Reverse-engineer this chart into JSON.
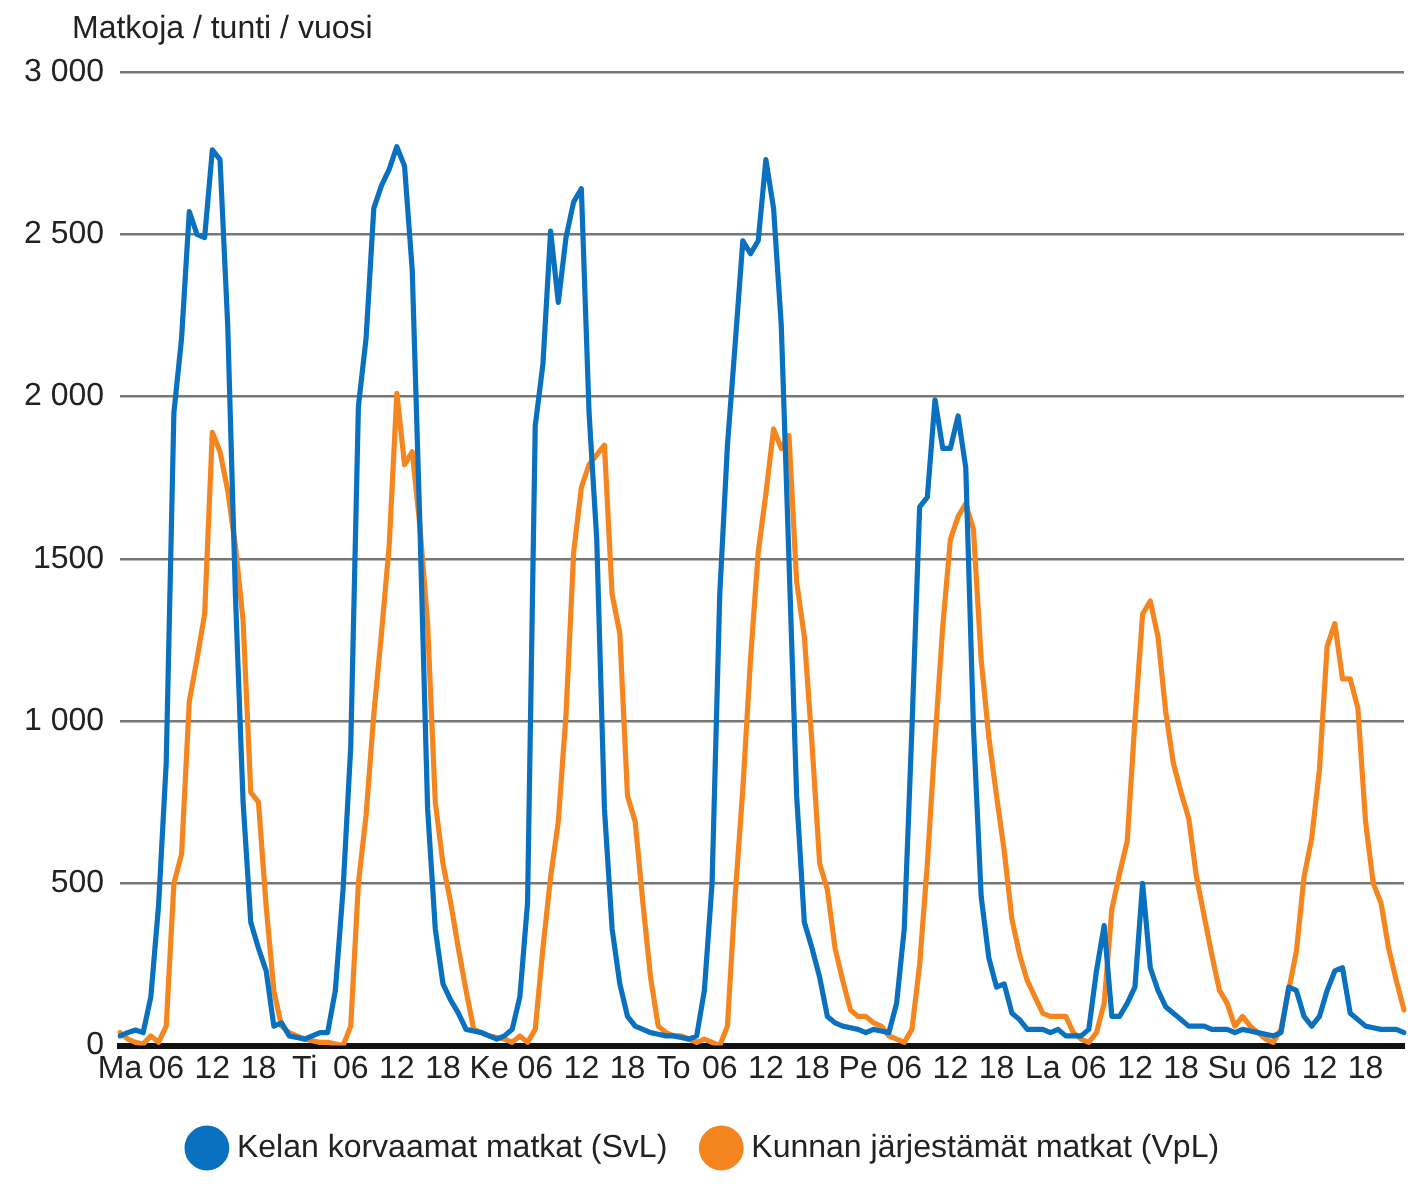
{
  "chart_data": {
    "type": "line",
    "ylabel": "Matkoja / tunti  / vuosi",
    "categories": [
      "Ma",
      null,
      null,
      null,
      null,
      null,
      "06",
      null,
      null,
      null,
      null,
      null,
      "12",
      null,
      null,
      null,
      null,
      null,
      "18",
      null,
      null,
      null,
      null,
      null,
      "Ti",
      null,
      null,
      null,
      null,
      null,
      "06",
      null,
      null,
      null,
      null,
      null,
      "12",
      null,
      null,
      null,
      null,
      null,
      "18",
      null,
      null,
      null,
      null,
      null,
      "Ke",
      null,
      null,
      null,
      null,
      null,
      "06",
      null,
      null,
      null,
      null,
      null,
      "12",
      null,
      null,
      null,
      null,
      null,
      "18",
      null,
      null,
      null,
      null,
      null,
      "To",
      null,
      null,
      null,
      null,
      null,
      "06",
      null,
      null,
      null,
      null,
      null,
      "12",
      null,
      null,
      null,
      null,
      null,
      "18",
      null,
      null,
      null,
      null,
      null,
      "Pe",
      null,
      null,
      null,
      null,
      null,
      "06",
      null,
      null,
      null,
      null,
      null,
      "12",
      null,
      null,
      null,
      null,
      null,
      "18",
      null,
      null,
      null,
      null,
      null,
      "La",
      null,
      null,
      null,
      null,
      null,
      "06",
      null,
      null,
      null,
      null,
      null,
      "12",
      null,
      null,
      null,
      null,
      null,
      "18",
      null,
      null,
      null,
      null,
      null,
      "Su",
      null,
      null,
      null,
      null,
      null,
      "06",
      null,
      null,
      null,
      null,
      null,
      "12",
      null,
      null,
      null,
      null,
      null,
      "18",
      null,
      null,
      null,
      null,
      null
    ],
    "ylim": [
      0,
      3000
    ],
    "yticks": [
      0,
      500,
      {
        "value": 1000,
        "label": "1 000"
      },
      1500,
      {
        "value": 2000,
        "label": "2 000"
      },
      {
        "value": 2500,
        "label": "2 500"
      },
      {
        "value": 3000,
        "label": "3 000"
      }
    ],
    "grid": "y",
    "legend": "bottom",
    "marker": "none",
    "line_style": "solid",
    "series": [
      {
        "name": "Kelan korvaamat matkat (SvL)",
        "color": "#0a70c0",
        "values": [
          30,
          40,
          48,
          40,
          150,
          430,
          870,
          1950,
          2180,
          2570,
          2500,
          2490,
          2760,
          2730,
          2220,
          1390,
          750,
          380,
          300,
          230,
          60,
          70,
          30,
          25,
          20,
          30,
          40,
          40,
          170,
          480,
          920,
          1970,
          2180,
          2580,
          2650,
          2700,
          2770,
          2710,
          2390,
          1600,
          730,
          360,
          190,
          140,
          100,
          50,
          45,
          40,
          30,
          20,
          30,
          50,
          150,
          440,
          1910,
          2100,
          2510,
          2290,
          2490,
          2600,
          2640,
          1950,
          1560,
          730,
          360,
          190,
          90,
          60,
          50,
          40,
          35,
          30,
          30,
          25,
          20,
          30,
          170,
          500,
          1390,
          1850,
          2160,
          2480,
          2440,
          2480,
          2730,
          2580,
          2220,
          1500,
          770,
          380,
          300,
          210,
          90,
          70,
          60,
          55,
          50,
          40,
          50,
          45,
          40,
          130,
          360,
          980,
          1660,
          1690,
          1990,
          1840,
          1840,
          1940,
          1780,
          980,
          460,
          270,
          180,
          190,
          100,
          80,
          50,
          50,
          50,
          40,
          50,
          30,
          30,
          30,
          50,
          230,
          370,
          90,
          90,
          130,
          180,
          500,
          240,
          170,
          120,
          100,
          80,
          60,
          60,
          60,
          50,
          50,
          50,
          40,
          50,
          45,
          40,
          35,
          30,
          40,
          180,
          170,
          90,
          60,
          90,
          170,
          230,
          240,
          100,
          80,
          60,
          55,
          50,
          50,
          50,
          40
        ]
      },
      {
        "name": "Kunnan järjestämät matkat (VpL)",
        "color": "#f5861f",
        "values": [
          40,
          20,
          10,
          5,
          30,
          10,
          60,
          500,
          590,
          1060,
          1190,
          1330,
          1890,
          1830,
          1710,
          1540,
          1310,
          780,
          750,
          430,
          170,
          60,
          40,
          30,
          20,
          15,
          10,
          10,
          5,
          0,
          60,
          500,
          710,
          1020,
          1270,
          1540,
          2010,
          1790,
          1830,
          1600,
          1300,
          750,
          560,
          440,
          300,
          170,
          50,
          40,
          30,
          25,
          20,
          10,
          30,
          10,
          50,
          300,
          520,
          690,
          1020,
          1520,
          1720,
          1790,
          1820,
          1850,
          1390,
          1270,
          770,
          690,
          440,
          210,
          60,
          40,
          30,
          30,
          20,
          10,
          20,
          10,
          0,
          60,
          460,
          790,
          1190,
          1520,
          1700,
          1900,
          1840,
          1880,
          1430,
          1260,
          930,
          560,
          480,
          300,
          200,
          110,
          90,
          90,
          70,
          60,
          30,
          20,
          10,
          50,
          250,
          560,
          940,
          1290,
          1560,
          1630,
          1670,
          1590,
          1190,
          950,
          770,
          600,
          390,
          280,
          200,
          150,
          100,
          90,
          90,
          90,
          40,
          20,
          10,
          40,
          130,
          420,
          530,
          630,
          1000,
          1330,
          1370,
          1260,
          1030,
          870,
          780,
          700,
          520,
          400,
          280,
          170,
          130,
          60,
          90,
          60,
          40,
          20,
          10,
          50,
          170,
          290,
          520,
          640,
          850,
          1230,
          1300,
          1130,
          1130,
          1040,
          690,
          500,
          440,
          300,
          200,
          110
        ]
      }
    ]
  }
}
